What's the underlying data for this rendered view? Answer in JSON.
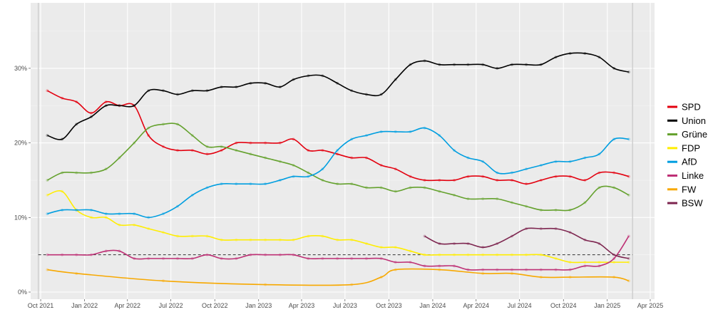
{
  "chart_data": {
    "type": "line",
    "title": "",
    "xlabel": "",
    "ylabel": "",
    "ylim": [
      0,
      38
    ],
    "grid": true,
    "legend_placement": "right",
    "y_ticks": [
      "0%",
      "10%",
      "20%",
      "30%"
    ],
    "y_tick_values": [
      0,
      10,
      20,
      30
    ],
    "x_ticks": [
      "Oct 2021",
      "Jan 2022",
      "Apr 2022",
      "Jul 2022",
      "Oct 2022",
      "Jan 2023",
      "Apr 2023",
      "Jul 2023",
      "Oct 2023",
      "Jan 2024",
      "Apr 2024",
      "Jul 2024",
      "Oct 2024",
      "Jan 2025",
      "Apr 2025"
    ],
    "x_tick_dates": [
      "2021-10-01",
      "2022-01-01",
      "2022-04-01",
      "2022-07-01",
      "2022-10-01",
      "2023-01-01",
      "2023-04-01",
      "2023-07-01",
      "2023-10-01",
      "2024-01-01",
      "2024-04-01",
      "2024-07-01",
      "2024-10-01",
      "2025-01-01",
      "2025-04-01"
    ],
    "xlim": [
      "2021-09-10",
      "2025-04-10"
    ],
    "reference_line": {
      "value": 5,
      "style": "dashed"
    },
    "election_dates": [
      "2021-09-26",
      "2025-02-23"
    ],
    "series": [
      {
        "name": "SPD",
        "color": "#E3000F",
        "x": [
          "2021-10",
          "2021-11",
          "2021-12",
          "2022-01",
          "2022-02",
          "2022-03",
          "2022-04",
          "2022-05",
          "2022-06",
          "2022-07",
          "2022-08",
          "2022-09",
          "2022-10",
          "2022-11",
          "2022-12",
          "2023-01",
          "2023-02",
          "2023-03",
          "2023-04",
          "2023-05",
          "2023-06",
          "2023-07",
          "2023-08",
          "2023-09",
          "2023-10",
          "2023-11",
          "2023-12",
          "2024-01",
          "2024-02",
          "2024-03",
          "2024-04",
          "2024-05",
          "2024-06",
          "2024-07",
          "2024-08",
          "2024-09",
          "2024-10",
          "2024-11",
          "2024-12",
          "2025-01",
          "2025-02"
        ],
        "values": [
          27,
          26,
          25.5,
          24,
          25.5,
          25,
          25,
          21,
          19.5,
          19,
          19,
          18.5,
          19,
          20,
          20,
          20,
          20,
          20.5,
          19,
          19,
          18.5,
          18,
          18,
          17,
          16.5,
          15.5,
          15,
          15,
          15,
          15.5,
          15.5,
          15,
          15,
          14.5,
          15,
          15.5,
          15.5,
          15,
          16,
          16,
          15.5
        ]
      },
      {
        "name": "Union",
        "color": "#000000",
        "x": [
          "2021-10",
          "2021-11",
          "2021-12",
          "2022-01",
          "2022-02",
          "2022-03",
          "2022-04",
          "2022-05",
          "2022-06",
          "2022-07",
          "2022-08",
          "2022-09",
          "2022-10",
          "2022-11",
          "2022-12",
          "2023-01",
          "2023-02",
          "2023-03",
          "2023-04",
          "2023-05",
          "2023-06",
          "2023-07",
          "2023-08",
          "2023-09",
          "2023-10",
          "2023-11",
          "2023-12",
          "2024-01",
          "2024-02",
          "2024-03",
          "2024-04",
          "2024-05",
          "2024-06",
          "2024-07",
          "2024-08",
          "2024-09",
          "2024-10",
          "2024-11",
          "2024-12",
          "2025-01",
          "2025-02"
        ],
        "values": [
          21,
          20.5,
          22.5,
          23.5,
          25,
          25,
          25,
          27,
          27,
          26.5,
          27,
          27,
          27.5,
          27.5,
          28,
          28,
          27.5,
          28.5,
          29,
          29,
          28,
          27,
          26.5,
          26.5,
          28.5,
          30.5,
          31,
          30.5,
          30.5,
          30.5,
          30.5,
          30,
          30.5,
          30.5,
          30.5,
          31.5,
          32,
          32,
          31.5,
          30,
          29.5
        ]
      },
      {
        "name": "Grüne",
        "color": "#64A12D",
        "x": [
          "2021-10",
          "2021-11",
          "2021-12",
          "2022-01",
          "2022-02",
          "2022-03",
          "2022-04",
          "2022-05",
          "2022-06",
          "2022-07",
          "2022-08",
          "2022-09",
          "2022-10",
          "2022-11",
          "2022-12",
          "2023-01",
          "2023-02",
          "2023-03",
          "2023-04",
          "2023-05",
          "2023-06",
          "2023-07",
          "2023-08",
          "2023-09",
          "2023-10",
          "2023-11",
          "2023-12",
          "2024-01",
          "2024-02",
          "2024-03",
          "2024-04",
          "2024-05",
          "2024-06",
          "2024-07",
          "2024-08",
          "2024-09",
          "2024-10",
          "2024-11",
          "2024-12",
          "2025-01",
          "2025-02"
        ],
        "values": [
          15,
          16,
          16,
          16,
          16.5,
          18,
          20,
          22,
          22.5,
          22.5,
          21,
          19.5,
          19.5,
          19,
          18.5,
          18,
          17.5,
          17,
          16,
          15,
          14.5,
          14.5,
          14,
          14,
          13.5,
          14,
          14,
          13.5,
          13,
          12.5,
          12.5,
          12.5,
          12,
          11.5,
          11,
          11,
          11,
          12,
          14,
          14,
          13
        ]
      },
      {
        "name": "FDP",
        "color": "#FFED00",
        "x": [
          "2021-10",
          "2021-11",
          "2021-12",
          "2022-01",
          "2022-02",
          "2022-03",
          "2022-04",
          "2022-05",
          "2022-06",
          "2022-07",
          "2022-08",
          "2022-09",
          "2022-10",
          "2022-11",
          "2022-12",
          "2023-01",
          "2023-02",
          "2023-03",
          "2023-04",
          "2023-05",
          "2023-06",
          "2023-07",
          "2023-08",
          "2023-09",
          "2023-10",
          "2023-11",
          "2023-12",
          "2024-01",
          "2024-02",
          "2024-03",
          "2024-04",
          "2024-05",
          "2024-06",
          "2024-07",
          "2024-08",
          "2024-09",
          "2024-10",
          "2024-11",
          "2024-12",
          "2025-01",
          "2025-02"
        ],
        "values": [
          13,
          13.5,
          11,
          10,
          10,
          9,
          9,
          8.5,
          8,
          7.5,
          7.5,
          7.5,
          7,
          7,
          7,
          7,
          7,
          7,
          7.5,
          7.5,
          7,
          7,
          6.5,
          6,
          6,
          5.5,
          5,
          5,
          5,
          5,
          5,
          5,
          5,
          5,
          5,
          4.5,
          4,
          4,
          4,
          4,
          4
        ]
      },
      {
        "name": "AfD",
        "color": "#009EE0",
        "x": [
          "2021-10",
          "2021-11",
          "2021-12",
          "2022-01",
          "2022-02",
          "2022-03",
          "2022-04",
          "2022-05",
          "2022-06",
          "2022-07",
          "2022-08",
          "2022-09",
          "2022-10",
          "2022-11",
          "2022-12",
          "2023-01",
          "2023-02",
          "2023-03",
          "2023-04",
          "2023-05",
          "2023-06",
          "2023-07",
          "2023-08",
          "2023-09",
          "2023-10",
          "2023-11",
          "2023-12",
          "2024-01",
          "2024-02",
          "2024-03",
          "2024-04",
          "2024-05",
          "2024-06",
          "2024-07",
          "2024-08",
          "2024-09",
          "2024-10",
          "2024-11",
          "2024-12",
          "2025-01",
          "2025-02"
        ],
        "values": [
          10.5,
          11,
          11,
          11,
          10.5,
          10.5,
          10.5,
          10,
          10.5,
          11.5,
          13,
          14,
          14.5,
          14.5,
          14.5,
          14.5,
          15,
          15.5,
          15.5,
          16.5,
          19,
          20.5,
          21,
          21.5,
          21.5,
          21.5,
          22,
          21,
          19,
          18,
          17.5,
          16,
          16,
          16.5,
          17,
          17.5,
          17.5,
          18,
          18.5,
          20.5,
          20.5
        ]
      },
      {
        "name": "Linke",
        "color": "#BE3075",
        "x": [
          "2021-10",
          "2021-11",
          "2021-12",
          "2022-01",
          "2022-02",
          "2022-03",
          "2022-04",
          "2022-05",
          "2022-06",
          "2022-07",
          "2022-08",
          "2022-09",
          "2022-10",
          "2022-11",
          "2022-12",
          "2023-01",
          "2023-02",
          "2023-03",
          "2023-04",
          "2023-05",
          "2023-06",
          "2023-07",
          "2023-08",
          "2023-09",
          "2023-10",
          "2023-11",
          "2023-12",
          "2024-01",
          "2024-02",
          "2024-03",
          "2024-04",
          "2024-05",
          "2024-06",
          "2024-07",
          "2024-08",
          "2024-09",
          "2024-10",
          "2024-11",
          "2024-12",
          "2025-01",
          "2025-02"
        ],
        "values": [
          5,
          5,
          5,
          5,
          5.5,
          5.5,
          4.5,
          4.5,
          4.5,
          4.5,
          4.5,
          5,
          4.5,
          4.5,
          5,
          5,
          5,
          5,
          4.5,
          4.5,
          4.5,
          4.5,
          4.5,
          4.5,
          4,
          4,
          3.5,
          3.5,
          3.5,
          3,
          3,
          3,
          3,
          3,
          3,
          3,
          3,
          3.5,
          3.5,
          4.5,
          7.5
        ]
      },
      {
        "name": "FW",
        "color": "#F7A800",
        "x": [
          "2021-10",
          "2021-12",
          "2022-06",
          "2023-01",
          "2023-07",
          "2023-09",
          "2023-10",
          "2024-01",
          "2024-04",
          "2024-06",
          "2024-08",
          "2024-10",
          "2025-01",
          "2025-02"
        ],
        "values": [
          3,
          2.5,
          1.5,
          1,
          1,
          2,
          3,
          3,
          2.5,
          2.5,
          2,
          2,
          2,
          1.5
        ]
      },
      {
        "name": "BSW",
        "color": "#7D254F",
        "x": [
          "2023-12",
          "2024-01",
          "2024-02",
          "2024-03",
          "2024-04",
          "2024-05",
          "2024-06",
          "2024-07",
          "2024-08",
          "2024-09",
          "2024-10",
          "2024-11",
          "2024-12",
          "2025-01",
          "2025-02"
        ],
        "values": [
          7.5,
          6.5,
          6.5,
          6.5,
          6,
          6.5,
          7.5,
          8.5,
          8.5,
          8.5,
          8,
          7,
          6.5,
          5,
          4.5
        ]
      }
    ]
  }
}
